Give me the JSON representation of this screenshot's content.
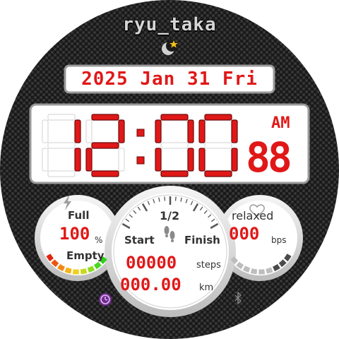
{
  "brand": "ryu_taka",
  "date_text": "2025 Jan 31 Fri",
  "time": {
    "hour": "12",
    "minute": "00",
    "seconds": "88",
    "ampm": "AM"
  },
  "battery": {
    "top_label": "Full",
    "bottom_label": "Empty",
    "value": "100",
    "unit": "%",
    "level": 1.0
  },
  "progress": {
    "label": "1/2",
    "start_label": "Start",
    "finish_label": "Finish",
    "fraction": 0.5
  },
  "steps": {
    "value": "00000",
    "unit": "steps"
  },
  "distance": {
    "value": "000.00",
    "unit": "km"
  },
  "heart": {
    "label": "relaxed",
    "value": "000",
    "unit": "bps"
  },
  "icons": {
    "top": "moon-star-icon",
    "battery": "lightning-icon",
    "steps": "footprints-icon",
    "heart": "heart-icon",
    "alarm": "alarm-clock-icon",
    "bluetooth": "bluetooth-icon"
  },
  "colors": {
    "digit": "#e01818",
    "ghost": "#6b0a0a",
    "display_bg": "#ffffff",
    "carbon": "#1c1c1c"
  }
}
